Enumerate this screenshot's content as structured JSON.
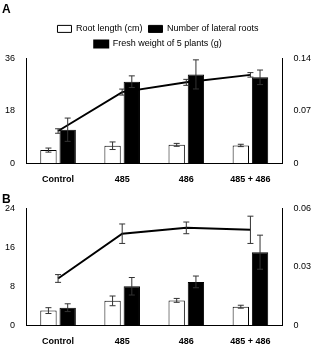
{
  "chart_data": [
    {
      "type": "bar",
      "title": "A",
      "categories": [
        "Control",
        "485",
        "486",
        "485 + 486"
      ],
      "series": [
        {
          "name": "Root length (cm)",
          "type": "bar",
          "color": "#ffffff",
          "values": [
            4.5,
            6.0,
            6.3,
            6.1
          ],
          "errors": [
            0.7,
            1.3,
            0.5,
            0.4
          ]
        },
        {
          "name": "Number of lateral roots",
          "type": "bar",
          "color": "#000000",
          "values": [
            11.5,
            28,
            30.5,
            29.5
          ],
          "errors": [
            4,
            2,
            5,
            2.5
          ]
        },
        {
          "name": "Fresh weight of 5 plants (g)",
          "type": "line",
          "color": "#000000",
          "axis": "y2",
          "values": [
            0.043,
            0.095,
            0.108,
            0.118
          ],
          "errors": [
            0.003,
            0.004,
            0.004,
            0.003
          ]
        }
      ],
      "ylim": [
        0,
        36
      ],
      "yticks": [
        0,
        18,
        36
      ],
      "y2lim": [
        0,
        0.14
      ],
      "y2ticks": [
        0,
        0.07,
        0.14
      ],
      "grid": false,
      "legend": "top"
    },
    {
      "type": "bar",
      "title": "B",
      "categories": [
        "Control",
        "485",
        "486",
        "485 + 486"
      ],
      "series": [
        {
          "name": "Root length (cm)",
          "type": "bar",
          "color": "#ffffff",
          "values": [
            3.0,
            5.0,
            5.1,
            3.8
          ],
          "errors": [
            0.6,
            1.0,
            0.4,
            0.3
          ]
        },
        {
          "name": "Number of lateral roots",
          "type": "bar",
          "color": "#000000",
          "values": [
            3.6,
            8.0,
            8.9,
            15.0
          ],
          "errors": [
            0.8,
            1.8,
            1.2,
            3.5
          ]
        },
        {
          "name": "Fresh weight of 5 plants (g)",
          "type": "line",
          "color": "#000000",
          "axis": "y2",
          "values": [
            0.024,
            0.047,
            0.05,
            0.049
          ],
          "errors": [
            0.002,
            0.005,
            0.003,
            0.007
          ]
        }
      ],
      "ylim": [
        0,
        24
      ],
      "yticks": [
        0,
        8,
        16,
        24
      ],
      "y2lim": [
        0,
        0.06
      ],
      "y2ticks": [
        0,
        0.03,
        0.06
      ],
      "grid": false
    }
  ]
}
